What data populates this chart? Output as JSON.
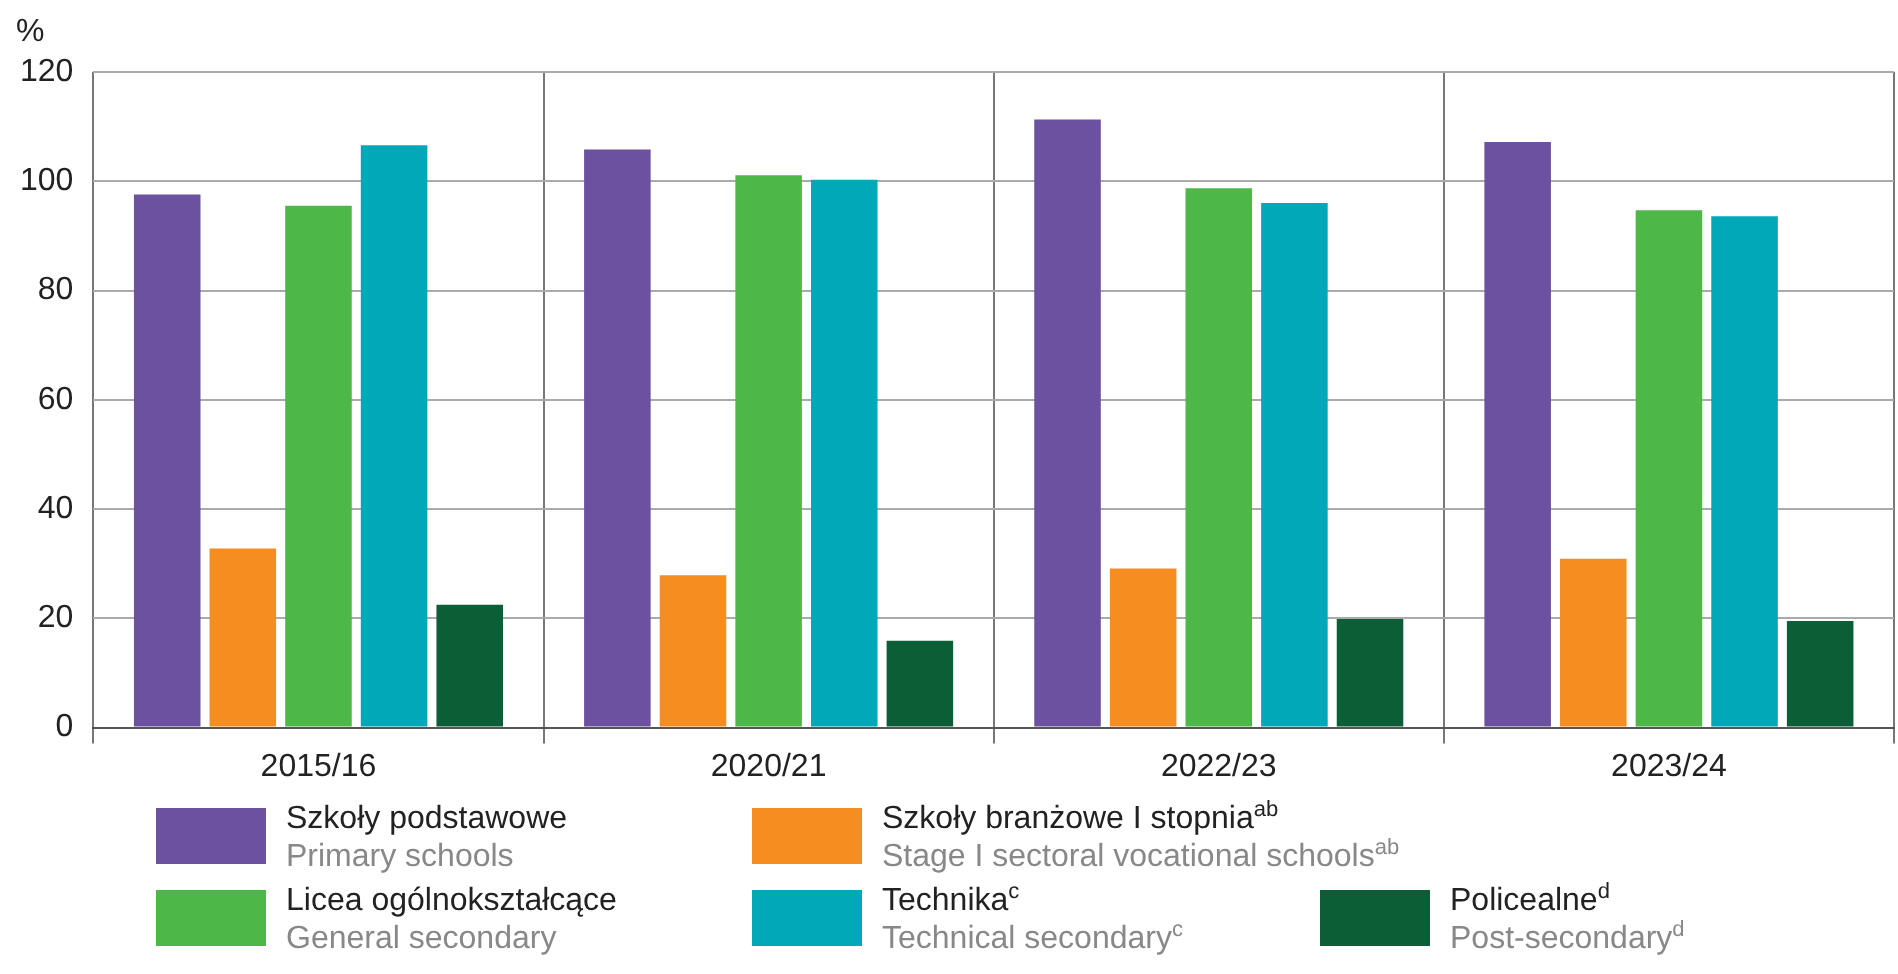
{
  "chart_data": {
    "type": "bar",
    "ylabel": "%",
    "categories": [
      "2015/16",
      "2020/21",
      "2022/23",
      "2023/24"
    ],
    "series": [
      {
        "name": "Szkoły podstawowe\nPrimary schools",
        "color": "#6b51a0",
        "values": [
          97.6,
          105.8,
          111.3,
          107.2
        ]
      },
      {
        "name": "Szkoły branżowe I stopnia$^{ab}$\nStage I sectoral vocational schools$^{ab}$",
        "color": "#f58d21",
        "values": [
          32.8,
          27.9,
          29.1,
          30.9
        ]
      },
      {
        "name": "Licea ogólnokształcące\nGeneral secondary",
        "color": "#4db848",
        "values": [
          95.5,
          101.1,
          98.7,
          94.7
        ]
      },
      {
        "name": "Technika$^{c}$\nTechnical secondary$^{c}$",
        "color": "#00a8b8",
        "values": [
          106.6,
          100.3,
          96.0,
          93.6
        ]
      },
      {
        "name": "Policealne$^{d}$\nPost-secondary$^{d}$",
        "color": "#0b5e35",
        "values": [
          22.5,
          15.9,
          19.9,
          19.5
        ]
      }
    ],
    "ylim": [
      0,
      120
    ],
    "yticks": [
      0,
      20,
      40,
      60,
      80,
      100,
      120
    ],
    "grid": true,
    "legend": "bottom"
  }
}
